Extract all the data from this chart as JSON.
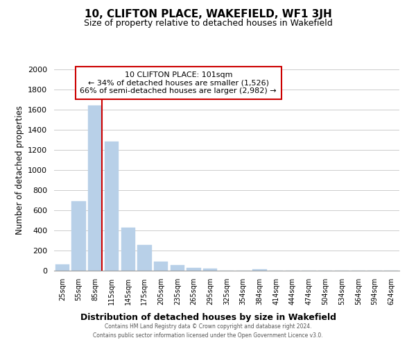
{
  "title": "10, CLIFTON PLACE, WAKEFIELD, WF1 3JH",
  "subtitle": "Size of property relative to detached houses in Wakefield",
  "xlabel": "Distribution of detached houses by size in Wakefield",
  "ylabel": "Number of detached properties",
  "bar_labels": [
    "25sqm",
    "55sqm",
    "85sqm",
    "115sqm",
    "145sqm",
    "175sqm",
    "205sqm",
    "235sqm",
    "265sqm",
    "295sqm",
    "325sqm",
    "354sqm",
    "384sqm",
    "414sqm",
    "444sqm",
    "474sqm",
    "504sqm",
    "534sqm",
    "564sqm",
    "594sqm",
    "624sqm"
  ],
  "bar_values": [
    65,
    690,
    1640,
    1285,
    430,
    253,
    90,
    52,
    28,
    22,
    0,
    0,
    15,
    0,
    0,
    0,
    0,
    0,
    0,
    0,
    0
  ],
  "bar_color": "#b8d0e8",
  "property_sqm": 101,
  "annotation_label": "10 CLIFTON PLACE: 101sqm",
  "annotation_smaller": "← 34% of detached houses are smaller (1,526)",
  "annotation_larger": "66% of semi-detached houses are larger (2,982) →",
  "vline_color": "#cc0000",
  "annotation_box_color": "#ffffff",
  "annotation_box_edgecolor": "#cc0000",
  "ylim": [
    0,
    2000
  ],
  "yticks": [
    0,
    200,
    400,
    600,
    800,
    1000,
    1200,
    1400,
    1600,
    1800,
    2000
  ],
  "footer1": "Contains HM Land Registry data © Crown copyright and database right 2024.",
  "footer2": "Contains public sector information licensed under the Open Government Licence v3.0.",
  "bg_color": "#ffffff",
  "grid_color": "#cccccc"
}
